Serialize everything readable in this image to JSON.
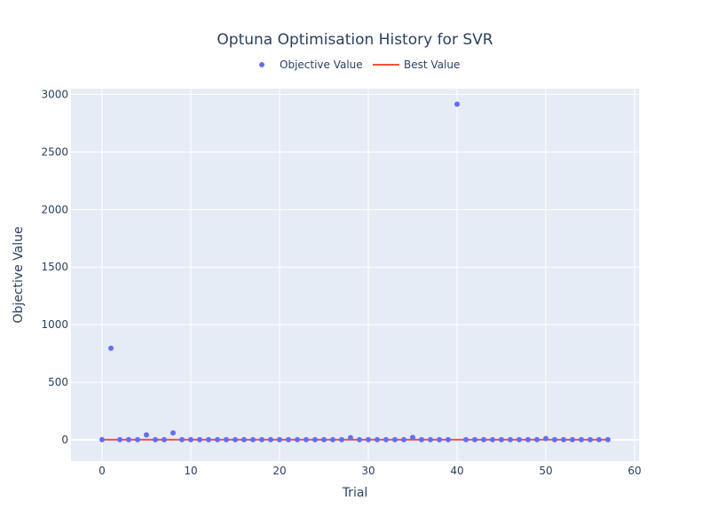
{
  "chart_data": {
    "type": "scatter",
    "title": "Optuna Optimisation History for SVR",
    "xlabel": "Trial",
    "ylabel": "Objective Value",
    "xlim": [
      -3.5,
      60.5
    ],
    "ylim": [
      -185,
      3050
    ],
    "x_ticks": [
      0,
      10,
      20,
      30,
      40,
      50,
      60
    ],
    "y_ticks": [
      0,
      500,
      1000,
      1500,
      2000,
      2500,
      3000
    ],
    "grid": true,
    "legend_position": "top-center",
    "series": [
      {
        "name": "Objective Value",
        "mode": "markers",
        "color": "#636efa",
        "x": [
          0,
          1,
          2,
          3,
          4,
          5,
          6,
          7,
          8,
          9,
          10,
          11,
          12,
          13,
          14,
          15,
          16,
          17,
          18,
          19,
          20,
          21,
          22,
          23,
          24,
          25,
          26,
          27,
          28,
          29,
          30,
          31,
          32,
          33,
          34,
          35,
          36,
          37,
          38,
          39,
          40,
          41,
          42,
          43,
          44,
          45,
          46,
          47,
          48,
          49,
          50,
          51,
          52,
          53,
          54,
          55,
          56,
          57
        ],
        "y": [
          0.5,
          795,
          0.5,
          0.5,
          0.5,
          42,
          0.5,
          0.5,
          60,
          0.5,
          0.5,
          0.5,
          0.5,
          0.5,
          0.5,
          0.5,
          0.5,
          0.5,
          0.5,
          0.5,
          0.5,
          0.5,
          0.5,
          0.5,
          0.5,
          0.5,
          0.5,
          0.5,
          18,
          0.5,
          0.5,
          0.5,
          0.5,
          0.5,
          0.5,
          20,
          0.5,
          0.5,
          0.5,
          0.5,
          2915,
          0.5,
          0.5,
          0.5,
          0.5,
          0.5,
          0.5,
          0.5,
          0.5,
          0.5,
          10,
          0.5,
          0.5,
          0.5,
          0.5,
          0.5,
          0.5,
          0.5
        ]
      },
      {
        "name": "Best Value",
        "mode": "line",
        "color": "#ef553b",
        "x": [
          0,
          57
        ],
        "y": [
          0.5,
          0.5
        ]
      }
    ]
  }
}
